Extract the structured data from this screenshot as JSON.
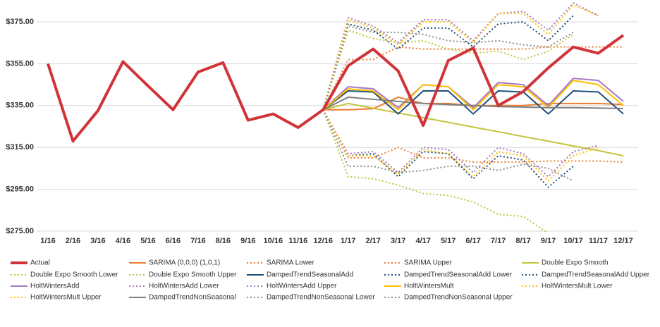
{
  "chart_data": {
    "type": "line",
    "categories": [
      "1/16",
      "2/16",
      "3/16",
      "4/16",
      "5/16",
      "6/16",
      "7/16",
      "8/16",
      "9/16",
      "10/16",
      "11/16",
      "12/16",
      "1/17",
      "2/17",
      "3/17",
      "4/17",
      "5/17",
      "6/17",
      "7/17",
      "8/17",
      "9/17",
      "10/17",
      "11/17",
      "12/17"
    ],
    "ylim": [
      275,
      385
    ],
    "yticks": [
      {
        "value": 275,
        "label": "$275.00"
      },
      {
        "value": 295,
        "label": "$295.00"
      },
      {
        "value": 315,
        "label": "$315.00"
      },
      {
        "value": 335,
        "label": "$335.00"
      },
      {
        "value": 355,
        "label": "$355.00"
      },
      {
        "value": 375,
        "label": "$375.00"
      }
    ],
    "grid": true,
    "legend": "bottom",
    "series": [
      {
        "name": "Actual",
        "color": "#d13438",
        "line_style": "solid",
        "values": [
          355,
          318,
          332.6,
          356,
          344.4,
          333,
          351,
          355.5,
          328,
          331,
          324.5,
          333,
          354,
          362,
          351.5,
          325.5,
          356.5,
          362.5,
          335,
          341.7,
          353,
          363,
          360,
          368.6
        ]
      },
      {
        "name": "SARIMA (0,0,0) (1,0,1)",
        "color": "#ed7d31",
        "line_style": "solid",
        "values": [
          null,
          null,
          null,
          null,
          null,
          null,
          null,
          null,
          null,
          null,
          null,
          333,
          333,
          333.5,
          339,
          336,
          336,
          335,
          335,
          335,
          336,
          336,
          336,
          335.5
        ]
      },
      {
        "name": "SARIMA Lower",
        "color": "#ed7d31",
        "line_style": "dotted",
        "values": [
          null,
          null,
          null,
          null,
          null,
          null,
          null,
          null,
          null,
          null,
          null,
          333,
          310,
          310,
          315,
          310,
          310,
          308,
          308,
          308,
          308.5,
          308.5,
          308.5,
          308
        ]
      },
      {
        "name": "SARIMA Upper",
        "color": "#ed7d31",
        "line_style": "dotted",
        "values": [
          null,
          null,
          null,
          null,
          null,
          null,
          null,
          null,
          null,
          null,
          null,
          333,
          357,
          357,
          363,
          362,
          362,
          362,
          362,
          362,
          363,
          363,
          363,
          363
        ]
      },
      {
        "name": "Double Expo Smooth",
        "color": "#c4c43a",
        "line_style": "solid",
        "values": [
          null,
          null,
          null,
          null,
          null,
          null,
          null,
          null,
          null,
          null,
          null,
          333,
          336,
          333.7,
          331.5,
          329.2,
          327,
          324.7,
          322.5,
          320.2,
          318,
          315.7,
          313.5,
          311
        ]
      },
      {
        "name": "Double Expo Smooth Lower",
        "color": "#c4c43a",
        "line_style": "dotted",
        "values": [
          null,
          null,
          null,
          null,
          null,
          null,
          null,
          null,
          null,
          null,
          null,
          333,
          301,
          300,
          297,
          293,
          292,
          289,
          283,
          282,
          274,
          null,
          null,
          null
        ]
      },
      {
        "name": "Double Expo Smooth Upper",
        "color": "#c4c43a",
        "line_style": "dotted",
        "values": [
          null,
          null,
          null,
          null,
          null,
          null,
          null,
          null,
          null,
          null,
          null,
          333,
          371,
          367,
          365,
          366,
          362,
          360,
          361,
          357,
          361,
          369,
          null,
          null
        ]
      },
      {
        "name": "DampedTrendSeasonalAdd",
        "color": "#1f4e79",
        "line_style": "solid",
        "values": [
          null,
          null,
          null,
          null,
          null,
          null,
          null,
          null,
          null,
          null,
          null,
          333,
          342,
          341.5,
          331,
          342,
          342,
          331,
          342,
          341.5,
          331,
          342,
          341.5,
          331
        ]
      },
      {
        "name": "DampedTrendSeasonalAdd Lower",
        "color": "#1f4e79",
        "line_style": "dotted",
        "values": [
          null,
          null,
          null,
          null,
          null,
          null,
          null,
          null,
          null,
          null,
          null,
          333,
          311,
          312,
          301,
          313,
          312,
          300,
          311,
          309,
          296,
          306,
          null,
          null
        ]
      },
      {
        "name": "DampedTrendSeasonalAdd Upper",
        "color": "#1f4e79",
        "line_style": "dotted",
        "values": [
          null,
          null,
          null,
          null,
          null,
          null,
          null,
          null,
          null,
          null,
          null,
          333,
          374,
          371,
          362,
          372,
          372,
          363,
          374,
          375,
          366,
          378,
          null,
          null
        ]
      },
      {
        "name": "HoltWintersAdd",
        "color": "#a678c4",
        "line_style": "solid",
        "values": [
          null,
          null,
          null,
          null,
          null,
          null,
          null,
          null,
          null,
          null,
          null,
          333,
          344,
          343,
          334,
          345,
          344,
          334,
          346,
          345,
          335,
          348,
          347,
          337
        ]
      },
      {
        "name": "HoltWintersAdd Lower",
        "color": "#a678c4",
        "line_style": "dotted",
        "values": [
          null,
          null,
          null,
          null,
          null,
          null,
          null,
          null,
          null,
          null,
          null,
          333,
          312,
          313,
          303,
          315,
          314,
          303,
          315,
          312,
          301,
          313,
          316,
          null
        ]
      },
      {
        "name": "HoltWintersAdd Upper",
        "color": "#a678c4",
        "line_style": "dotted",
        "values": [
          null,
          null,
          null,
          null,
          null,
          null,
          null,
          null,
          null,
          null,
          null,
          333,
          377,
          373,
          365,
          376,
          376,
          366,
          379,
          380,
          371,
          384,
          378,
          null
        ]
      },
      {
        "name": "HoltWintersMult",
        "color": "#ffc000",
        "line_style": "solid",
        "values": [
          null,
          null,
          null,
          null,
          null,
          null,
          null,
          null,
          null,
          null,
          null,
          333,
          343,
          342,
          333,
          345,
          344,
          333,
          345,
          344,
          334,
          347,
          345,
          335
        ]
      },
      {
        "name": "HoltWintersMult Lower",
        "color": "#ffc000",
        "line_style": "dotted",
        "values": [
          null,
          null,
          null,
          null,
          null,
          null,
          null,
          null,
          null,
          null,
          null,
          333,
          311,
          311,
          302,
          314,
          312,
          301,
          313,
          311,
          299,
          311,
          315,
          null
        ]
      },
      {
        "name": "HoltWintersMult Upper",
        "color": "#ffc000",
        "line_style": "dotted",
        "values": [
          null,
          null,
          null,
          null,
          null,
          null,
          null,
          null,
          null,
          null,
          null,
          333,
          376,
          372,
          364,
          375,
          375,
          365,
          379,
          379,
          369,
          383,
          378,
          null
        ]
      },
      {
        "name": "DampedTrendNonSeasonal",
        "color": "#7f7f7f",
        "line_style": "solid",
        "values": [
          null,
          null,
          null,
          null,
          null,
          null,
          null,
          null,
          null,
          null,
          null,
          333,
          339,
          338,
          337,
          336,
          335.5,
          335,
          334.5,
          334.3,
          334,
          334,
          333.8,
          333.6
        ]
      },
      {
        "name": "DampedTrendNonSeasonal Lower",
        "color": "#8c8c8c",
        "line_style": "dotted",
        "values": [
          null,
          null,
          null,
          null,
          null,
          null,
          null,
          null,
          null,
          null,
          null,
          333,
          306,
          306,
          303,
          304,
          306,
          306,
          304,
          307,
          305,
          299,
          null,
          null
        ]
      },
      {
        "name": "DampedTrendNonSeasonal Upper",
        "color": "#8c8c8c",
        "line_style": "dotted",
        "values": [
          null,
          null,
          null,
          null,
          null,
          null,
          null,
          null,
          null,
          null,
          null,
          333,
          373,
          370,
          370,
          369,
          366,
          365,
          366,
          364,
          363,
          370,
          null,
          null
        ]
      }
    ]
  }
}
